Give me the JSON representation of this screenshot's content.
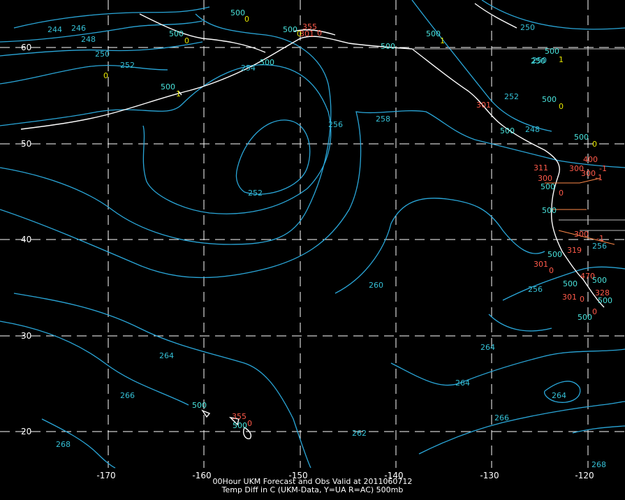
{
  "map": {
    "lon_ticks": [
      "-170",
      "-160",
      "-150",
      "-140",
      "-130",
      "-120"
    ],
    "lat_ticks": [
      "60",
      "50",
      "40",
      "30",
      "20"
    ],
    "caption_line1": "00Hour UKM Forecast and Obs Valid at 2011060712",
    "caption_line2": "Temp Diff in C (UKM-Data, Y=UA R=AC) 500mb",
    "colors": {
      "background": "#000000",
      "contour": "#2aa7d9",
      "contour_label": "#35c0d6",
      "obs_cyan": "#49e3dc",
      "obs_yellow": "#e6e600",
      "obs_red": "#ff5a4a",
      "coast": "#ffffff",
      "grid": "#ffffff"
    },
    "contour_labels": [
      "244",
      "246",
      "248",
      "250",
      "252",
      "252",
      "250",
      "252",
      "254",
      "256",
      "258",
      "260",
      "264",
      "264",
      "264",
      "266",
      "266",
      "268",
      "262",
      "268",
      "256",
      "248",
      "264",
      "250",
      "256"
    ],
    "obs_labels": [
      {
        "text": "500",
        "c": "cyan"
      },
      {
        "text": "0",
        "c": "yellow"
      },
      {
        "text": "500",
        "c": "cyan"
      },
      {
        "text": "0",
        "c": "yellow"
      },
      {
        "text": "500",
        "c": "cyan"
      },
      {
        "text": "0",
        "c": "yellow"
      },
      {
        "text": "500",
        "c": "cyan"
      },
      {
        "text": "1",
        "c": "yellow"
      },
      {
        "text": "500",
        "c": "cyan"
      },
      {
        "text": "355",
        "c": "red"
      },
      {
        "text": "301",
        "c": "red"
      },
      {
        "text": "0",
        "c": "red"
      },
      {
        "text": "500",
        "c": "cyan"
      },
      {
        "text": "500",
        "c": "cyan"
      },
      {
        "text": "1",
        "c": "yellow"
      },
      {
        "text": "500",
        "c": "cyan"
      },
      {
        "text": "1",
        "c": "yellow"
      },
      {
        "text": "500",
        "c": "cyan"
      },
      {
        "text": "0",
        "c": "yellow"
      },
      {
        "text": "301",
        "c": "red"
      },
      {
        "text": "500",
        "c": "cyan"
      },
      {
        "text": "500",
        "c": "cyan"
      },
      {
        "text": "0",
        "c": "yellow"
      },
      {
        "text": "400",
        "c": "red"
      },
      {
        "text": "311",
        "c": "red"
      },
      {
        "text": "300",
        "c": "red"
      },
      {
        "text": "300",
        "c": "red"
      },
      {
        "text": "-1",
        "c": "red"
      },
      {
        "text": "-1",
        "c": "red"
      },
      {
        "text": "300",
        "c": "red"
      },
      {
        "text": "500",
        "c": "cyan"
      },
      {
        "text": "0",
        "c": "red"
      },
      {
        "text": "500",
        "c": "cyan"
      },
      {
        "text": "300",
        "c": "red"
      },
      {
        "text": "-1",
        "c": "red"
      },
      {
        "text": "319",
        "c": "red"
      },
      {
        "text": "500",
        "c": "cyan"
      },
      {
        "text": "301",
        "c": "red"
      },
      {
        "text": "0",
        "c": "red"
      },
      {
        "text": "470",
        "c": "red"
      },
      {
        "text": "500",
        "c": "cyan"
      },
      {
        "text": "500",
        "c": "cyan"
      },
      {
        "text": "328",
        "c": "red"
      },
      {
        "text": "301",
        "c": "red"
      },
      {
        "text": "0",
        "c": "red"
      },
      {
        "text": "500",
        "c": "cyan"
      },
      {
        "text": "0",
        "c": "red"
      },
      {
        "text": "500",
        "c": "cyan"
      },
      {
        "text": "355",
        "c": "red"
      },
      {
        "text": "500",
        "c": "cyan"
      },
      {
        "text": "0",
        "c": "red"
      },
      {
        "text": "500",
        "c": "cyan"
      },
      {
        "text": "250",
        "c": "cyan"
      },
      {
        "text": "0",
        "c": "yellow"
      }
    ]
  }
}
